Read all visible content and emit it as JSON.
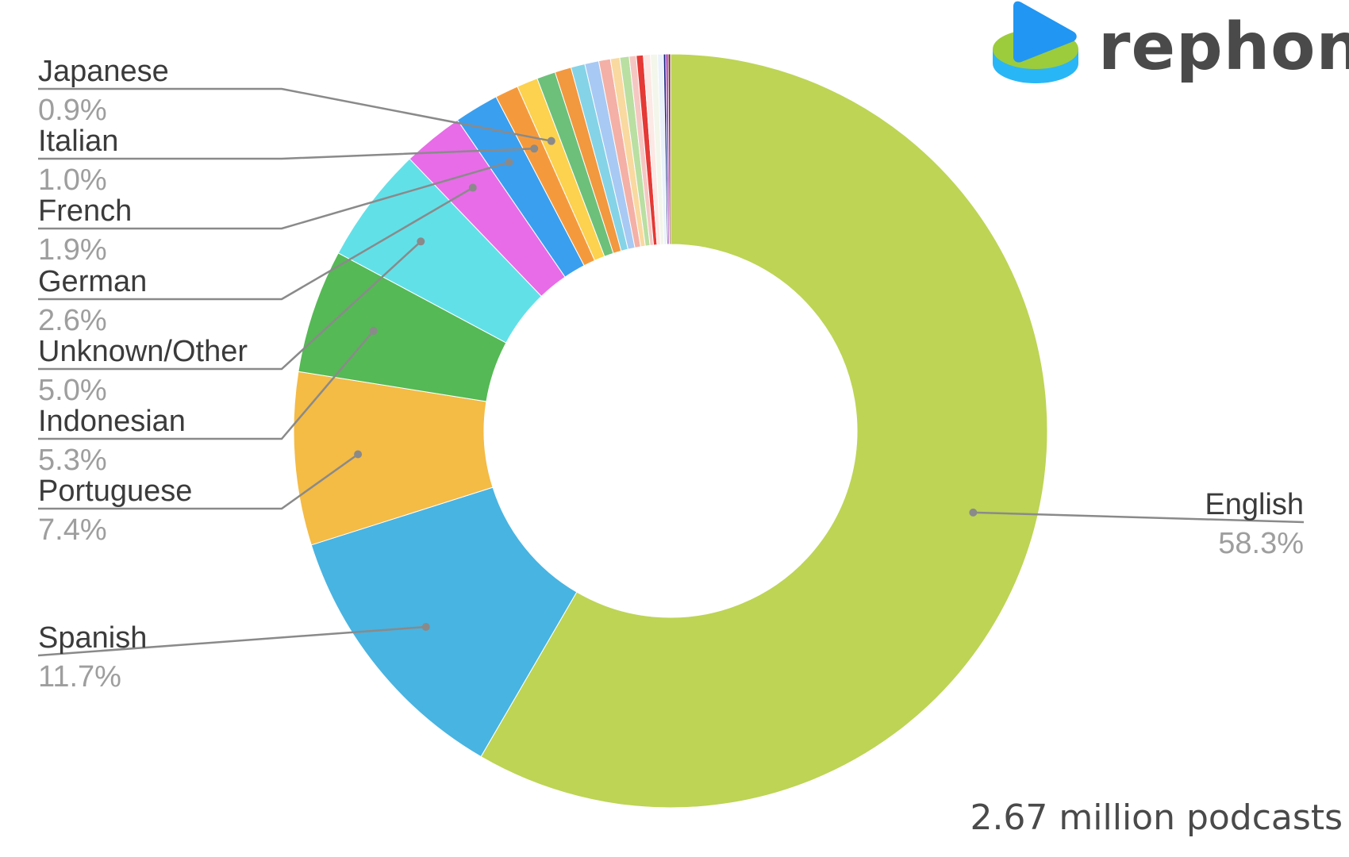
{
  "brand": {
    "name": "rephonic"
  },
  "caption": "2.67 million podcasts",
  "chart_data": {
    "type": "pie",
    "subtype": "donut",
    "title": "",
    "legend": "none",
    "labeled": [
      {
        "name": "English",
        "value": 58.3,
        "label": "58.3%",
        "color": "#bdd455"
      },
      {
        "name": "Spanish",
        "value": 11.7,
        "label": "11.7%",
        "color": "#48b4e2"
      },
      {
        "name": "Portuguese",
        "value": 7.4,
        "label": "7.4%",
        "color": "#f4bb45"
      },
      {
        "name": "Indonesian",
        "value": 5.3,
        "label": "5.3%",
        "color": "#55b955"
      },
      {
        "name": "Unknown/Other",
        "value": 5.0,
        "label": "5.0%",
        "color": "#62e0e8"
      },
      {
        "name": "German",
        "value": 2.6,
        "label": "2.6%",
        "color": "#e86ce8"
      },
      {
        "name": "French",
        "value": 1.9,
        "label": "1.9%",
        "color": "#3a9fef"
      },
      {
        "name": "Italian",
        "value": 1.0,
        "label": "1.0%",
        "color": "#f59a3c"
      },
      {
        "name": "Japanese",
        "value": 0.9,
        "label": "0.9%",
        "color": "#fcd24e"
      }
    ],
    "unlabeled_slices": [
      {
        "value": 0.8,
        "color": "#6dc07a"
      },
      {
        "value": 0.7,
        "color": "#f2983f"
      },
      {
        "value": 0.6,
        "color": "#85d3e6"
      },
      {
        "value": 0.6,
        "color": "#a8c9f3"
      },
      {
        "value": 0.5,
        "color": "#f4b0a6"
      },
      {
        "value": 0.4,
        "color": "#f9d9a0"
      },
      {
        "value": 0.4,
        "color": "#b9dfa2"
      },
      {
        "value": 0.3,
        "color": "#f6c7c2"
      },
      {
        "value": 0.3,
        "color": "#e53935"
      },
      {
        "value": 0.3,
        "color": "#fce8e4"
      },
      {
        "value": 0.3,
        "color": "#f3f6ea"
      },
      {
        "value": 0.25,
        "color": "#eaf2fb"
      },
      {
        "value": 0.1,
        "color": "#1a237e"
      },
      {
        "value": 0.1,
        "color": "#9c27b0"
      },
      {
        "value": 0.1,
        "color": "#7b1f1f"
      }
    ]
  }
}
